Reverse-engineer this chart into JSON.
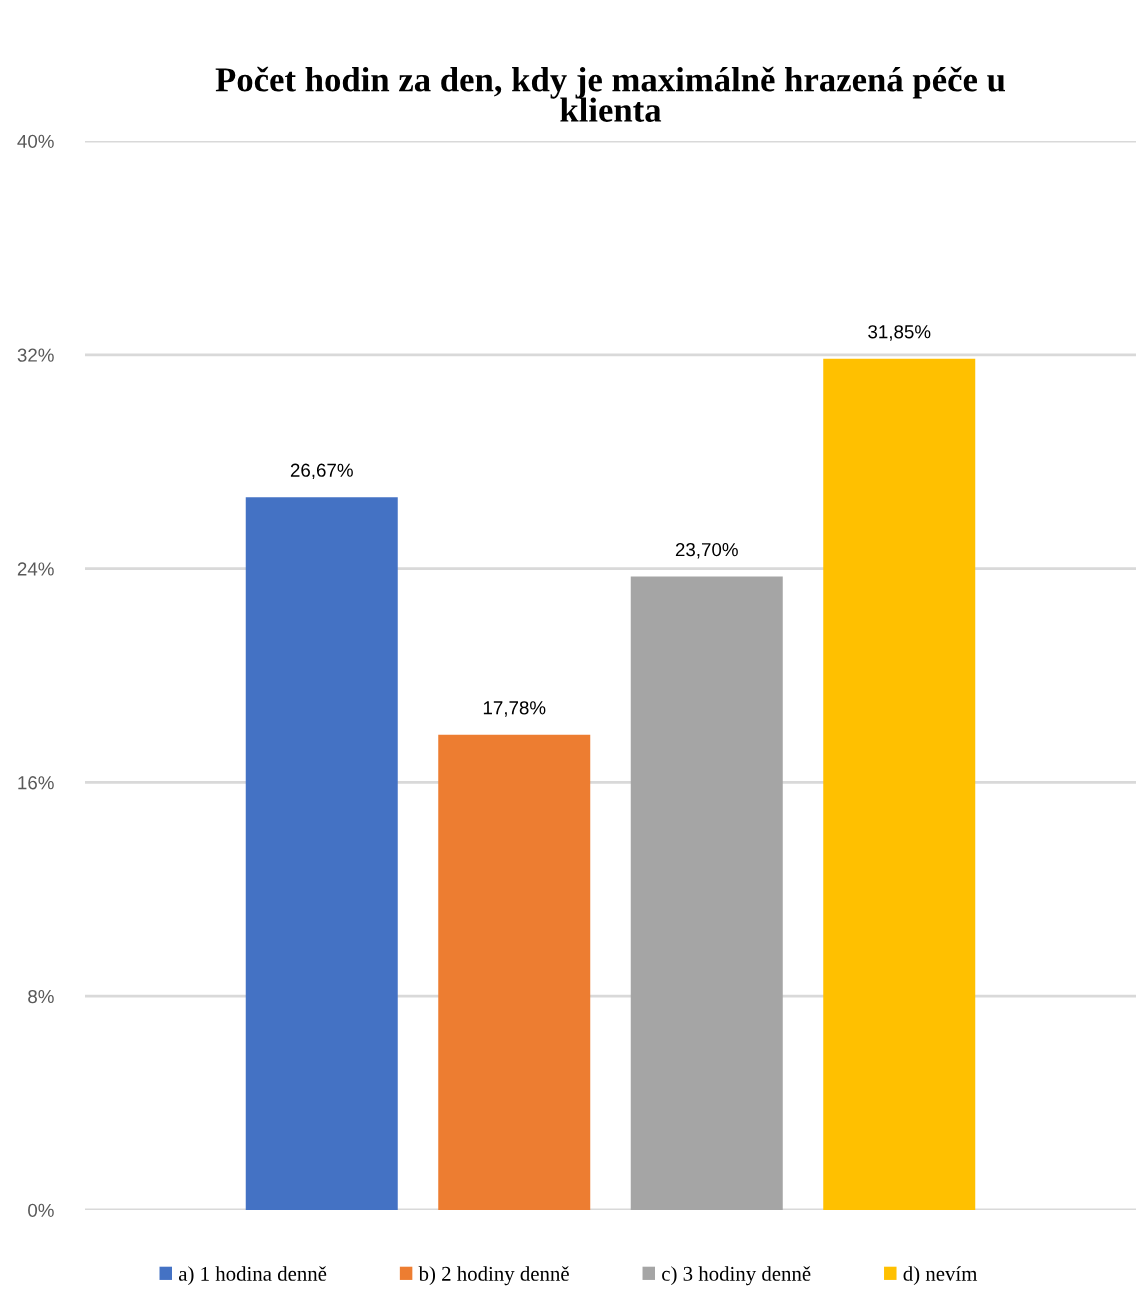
{
  "chart_data": {
    "type": "bar",
    "title": "Počet hodin za den, kdy je maximálně hrazená péče u\nklienta",
    "categories": [
      null
    ],
    "series": [
      {
        "name": "a) 1 hodina denně",
        "color": "#4472c4",
        "values": [
          26.67
        ],
        "value_labels": [
          "26,67%"
        ]
      },
      {
        "name": "b) 2 hodiny denně",
        "color": "#ed7d31",
        "values": [
          17.78
        ],
        "value_labels": [
          "17,78%"
        ]
      },
      {
        "name": "c) 3 hodiny denně",
        "color": "#a5a5a5",
        "values": [
          23.7
        ],
        "value_labels": [
          "23,70%"
        ]
      },
      {
        "name": "d) nevím",
        "color": "#ffc000",
        "values": [
          31.85
        ],
        "value_labels": [
          "31,85%"
        ]
      }
    ],
    "ylim": [
      0,
      40
    ],
    "yticks": [
      {
        "value": 0,
        "label": "0%"
      },
      {
        "value": 8,
        "label": "8%"
      },
      {
        "value": 16,
        "label": "16%"
      },
      {
        "value": 24,
        "label": "24%"
      },
      {
        "value": 32,
        "label": "32%"
      },
      {
        "value": 40,
        "label": "40%"
      }
    ],
    "grid": "y",
    "legend": "bottom"
  }
}
